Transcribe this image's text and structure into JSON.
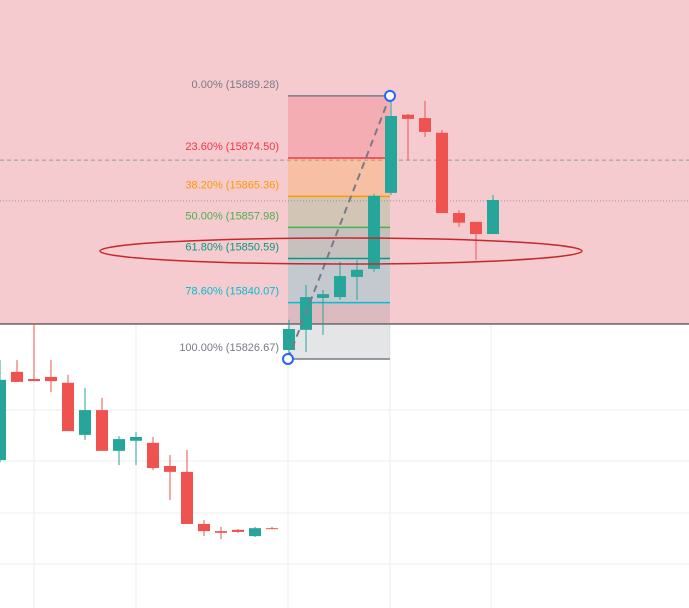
{
  "chart_data": {
    "type": "candlestick",
    "ylim": [
      15767.4,
      15912.1
    ],
    "up_color": "#26a69a",
    "down_color": "#ef5350",
    "zone": {
      "from": 15835.0,
      "color": "#f5cbcf"
    },
    "price_lines": [
      15874.0,
      15864.3
    ],
    "candles": [
      {
        "open": 15802.6,
        "high": 15826.4,
        "low": 15802.1,
        "close": 15821.7
      },
      {
        "open": 15823.6,
        "high": 15826.4,
        "low": 15821.2,
        "close": 15821.2
      },
      {
        "open": 15821.9,
        "high": 15835.2,
        "low": 15821.4,
        "close": 15821.4
      },
      {
        "open": 15822.4,
        "high": 15826.4,
        "low": 15818.8,
        "close": 15821.4
      },
      {
        "open": 15821.0,
        "high": 15822.9,
        "low": 15809.5,
        "close": 15809.5
      },
      {
        "open": 15808.6,
        "high": 15819.8,
        "low": 15807.4,
        "close": 15814.5
      },
      {
        "open": 15814.5,
        "high": 15817.4,
        "low": 15804.8,
        "close": 15804.8
      },
      {
        "open": 15804.8,
        "high": 15808.3,
        "low": 15801.4,
        "close": 15807.6
      },
      {
        "open": 15807.2,
        "high": 15809.3,
        "low": 15801.4,
        "close": 15808.1
      },
      {
        "open": 15806.7,
        "high": 15808.1,
        "low": 15800.2,
        "close": 15800.7
      },
      {
        "open": 15801.2,
        "high": 15803.8,
        "low": 15793.1,
        "close": 15799.8
      },
      {
        "open": 15799.8,
        "high": 15805.0,
        "low": 15787.4,
        "close": 15787.4
      },
      {
        "open": 15787.4,
        "high": 15788.3,
        "low": 15784.5,
        "close": 15785.7
      },
      {
        "open": 15785.7,
        "high": 15786.7,
        "low": 15783.8,
        "close": 15785.3
      },
      {
        "open": 15786.0,
        "high": 15786.2,
        "low": 15785.3,
        "close": 15785.5
      },
      {
        "open": 15784.5,
        "high": 15786.7,
        "low": 15784.3,
        "close": 15786.4
      },
      {
        "open": 15786.4,
        "high": 15786.7,
        "low": 15786.2,
        "close": 15786.2
      },
      {
        "open": 15828.8,
        "high": 15836.0,
        "low": 15826.67,
        "close": 15833.8
      },
      {
        "open": 15833.6,
        "high": 15844.3,
        "low": 15828.3,
        "close": 15841.4
      },
      {
        "open": 15841.2,
        "high": 15843.1,
        "low": 15832.4,
        "close": 15842.1
      },
      {
        "open": 15841.4,
        "high": 15849.8,
        "low": 15840.7,
        "close": 15846.4
      },
      {
        "open": 15846.2,
        "high": 15850.2,
        "low": 15840.7,
        "close": 15847.9
      },
      {
        "open": 15848.1,
        "high": 15866.0,
        "low": 15847.4,
        "close": 15865.5
      },
      {
        "open": 15866.2,
        "high": 15889.28,
        "low": 15865.7,
        "close": 15884.5
      },
      {
        "open": 15884.8,
        "high": 15885.0,
        "low": 15874.0,
        "close": 15883.8
      },
      {
        "open": 15884.0,
        "high": 15888.1,
        "low": 15879.5,
        "close": 15880.7
      },
      {
        "open": 15880.5,
        "high": 15881.2,
        "low": 15861.4,
        "close": 15861.4
      },
      {
        "open": 15861.4,
        "high": 15862.1,
        "low": 15858.1,
        "close": 15859.1
      },
      {
        "open": 15859.3,
        "high": 15859.3,
        "low": 15850.2,
        "close": 15856.4
      },
      {
        "open": 15856.4,
        "high": 15865.7,
        "low": 15856.4,
        "close": 15864.5
      }
    ],
    "fib_levels": [
      {
        "label": "0.00% (15889.28)",
        "value": 15889.28,
        "color": "#787b86"
      },
      {
        "label": "23.60% (15874.50)",
        "value": 15874.5,
        "color": "#f23645"
      },
      {
        "label": "38.20% (15865.36)",
        "value": 15865.36,
        "color": "#ff9800"
      },
      {
        "label": "50.00% (15857.98)",
        "value": 15857.98,
        "color": "#4caf50"
      },
      {
        "label": "61.80% (15850.59)",
        "value": 15850.59,
        "color": "#089981"
      },
      {
        "label": "78.60% (15840.07)",
        "value": 15840.07,
        "color": "#00bcd4"
      },
      {
        "label": "100.00% (15826.67)",
        "value": 15826.67,
        "color": "#787b86"
      }
    ]
  }
}
